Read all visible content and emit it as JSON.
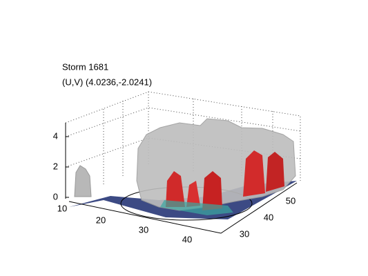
{
  "title": "Storm 1681",
  "subtitle": "(U,V) (4.0236,-2.0241)",
  "axes": {
    "z_ticks": [
      0,
      2,
      4
    ],
    "x_ticks": [
      10,
      20,
      30,
      40
    ],
    "y_ticks": [
      30,
      40,
      50
    ]
  }
}
